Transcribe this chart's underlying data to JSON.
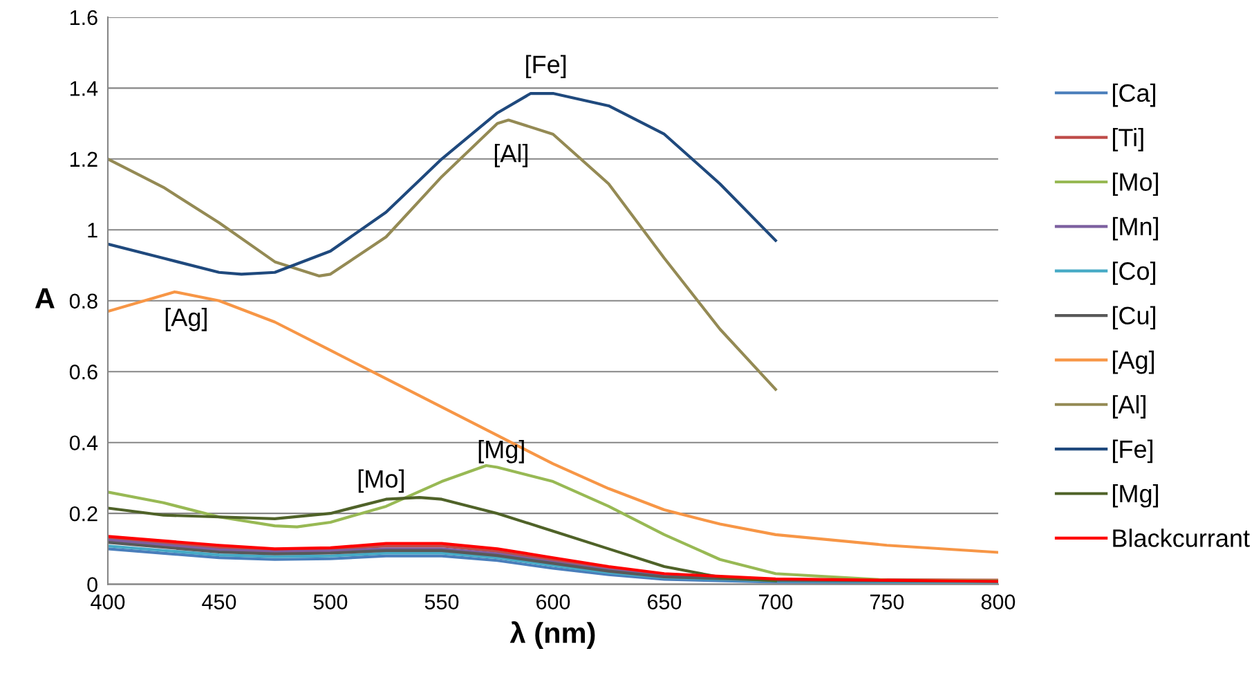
{
  "chart_data": {
    "type": "line",
    "xlabel": "λ (nm)",
    "ylabel": "A",
    "xlim": [
      400,
      800
    ],
    "xticks": [
      400,
      450,
      500,
      550,
      600,
      650,
      700,
      750,
      800
    ],
    "ylim": [
      0,
      1.6
    ],
    "yticks": [
      0,
      0.2,
      0.4,
      0.6,
      0.8,
      1,
      1.2,
      1.4,
      1.6
    ],
    "grid": "y",
    "legend": "right",
    "marker": "none",
    "line_style": "solid",
    "series": [
      {
        "name": "[Ca]",
        "color": "#4a7ebb",
        "x": [
          400,
          450,
          475,
          500,
          525,
          550,
          575,
          600,
          625,
          650,
          700,
          800
        ],
        "values": [
          0.1,
          0.075,
          0.07,
          0.072,
          0.08,
          0.08,
          0.067,
          0.045,
          0.027,
          0.014,
          0.006,
          0.003
        ]
      },
      {
        "name": "[Ti]",
        "color": "#be4b48",
        "x": [
          400,
          450,
          475,
          500,
          525,
          550,
          575,
          600,
          625,
          650,
          700,
          800
        ],
        "values": [
          0.13,
          0.104,
          0.097,
          0.099,
          0.108,
          0.108,
          0.093,
          0.068,
          0.044,
          0.026,
          0.013,
          0.012
        ]
      },
      {
        "name": "[Mo]",
        "color": "#98b954",
        "x": [
          400,
          425,
          450,
          475,
          485,
          500,
          525,
          550,
          570,
          575,
          600,
          625,
          650,
          675,
          700,
          750,
          800
        ],
        "values": [
          0.26,
          0.23,
          0.19,
          0.165,
          0.162,
          0.175,
          0.22,
          0.29,
          0.335,
          0.33,
          0.29,
          0.22,
          0.14,
          0.07,
          0.03,
          0.012,
          0.01
        ]
      },
      {
        "name": "[Mn]",
        "color": "#7d60a0",
        "x": [
          400,
          450,
          475,
          500,
          525,
          550,
          575,
          600,
          625,
          650,
          700,
          800
        ],
        "values": [
          0.125,
          0.097,
          0.092,
          0.094,
          0.1,
          0.1,
          0.086,
          0.062,
          0.04,
          0.023,
          0.012,
          0.007
        ]
      },
      {
        "name": "[Co]",
        "color": "#46aac5",
        "x": [
          400,
          450,
          475,
          500,
          525,
          550,
          575,
          600,
          625,
          650,
          700,
          800
        ],
        "values": [
          0.108,
          0.083,
          0.078,
          0.08,
          0.088,
          0.088,
          0.075,
          0.053,
          0.033,
          0.019,
          0.009,
          0.005
        ]
      },
      {
        "name": "[Cu]",
        "color": "#595959",
        "x": [
          400,
          450,
          475,
          500,
          525,
          550,
          575,
          600,
          625,
          650,
          700,
          800
        ],
        "values": [
          0.118,
          0.091,
          0.086,
          0.088,
          0.095,
          0.095,
          0.081,
          0.059,
          0.037,
          0.021,
          0.011,
          0.008
        ]
      },
      {
        "name": "[Ag]",
        "color": "#f79646",
        "x": [
          400,
          430,
          450,
          475,
          500,
          525,
          550,
          575,
          600,
          625,
          650,
          675,
          700,
          750,
          800
        ],
        "values": [
          0.77,
          0.825,
          0.8,
          0.74,
          0.66,
          0.58,
          0.5,
          0.42,
          0.34,
          0.27,
          0.21,
          0.17,
          0.14,
          0.11,
          0.09
        ]
      },
      {
        "name": "[Al]",
        "color": "#948a54",
        "x": [
          400,
          425,
          450,
          475,
          495,
          500,
          525,
          550,
          575,
          580,
          600,
          625,
          650,
          675,
          700
        ],
        "values": [
          1.2,
          1.12,
          1.02,
          0.91,
          0.87,
          0.875,
          0.98,
          1.15,
          1.3,
          1.31,
          1.27,
          1.13,
          0.92,
          0.72,
          0.55
        ]
      },
      {
        "name": "[Fe]",
        "color": "#1f497d",
        "x": [
          400,
          425,
          450,
          460,
          475,
          500,
          525,
          550,
          575,
          590,
          600,
          625,
          650,
          675,
          700
        ],
        "values": [
          0.96,
          0.92,
          0.88,
          0.875,
          0.88,
          0.94,
          1.05,
          1.2,
          1.33,
          1.385,
          1.385,
          1.35,
          1.27,
          1.13,
          0.97
        ]
      },
      {
        "name": "[Mg]",
        "color": "#4f6228",
        "x": [
          400,
          425,
          450,
          475,
          500,
          525,
          540,
          550,
          575,
          600,
          625,
          650,
          675,
          700
        ],
        "values": [
          0.215,
          0.195,
          0.19,
          0.185,
          0.2,
          0.24,
          0.245,
          0.24,
          0.2,
          0.15,
          0.1,
          0.05,
          0.02,
          0.01
        ]
      },
      {
        "name": "Blackcurrant",
        "color": "#ff0000",
        "x": [
          400,
          450,
          475,
          500,
          525,
          550,
          575,
          600,
          625,
          650,
          700,
          800
        ],
        "values": [
          0.135,
          0.11,
          0.1,
          0.103,
          0.115,
          0.115,
          0.1,
          0.075,
          0.05,
          0.03,
          0.015,
          0.008
        ]
      }
    ],
    "annotations": [
      "[Fe]",
      "[Al]",
      "[Ag]",
      "[Mo]",
      "[Mg]"
    ]
  }
}
